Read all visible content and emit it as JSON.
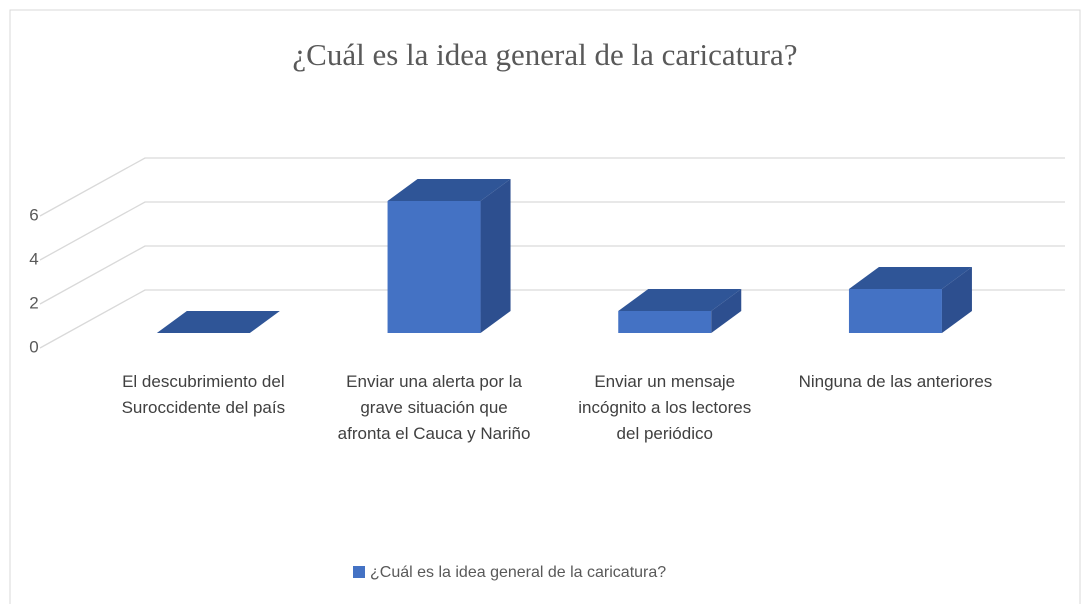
{
  "chart_data": {
    "type": "bar3d",
    "title": "¿Cuál es la idea general de la caricatura?",
    "categories": [
      "El descubrimiento del Suroccidente del país",
      "Enviar una alerta por la grave situación que afronta el Cauca y Nariño",
      "Enviar un mensaje incógnito a los lectores del periódico",
      "Ninguna de las anteriores"
    ],
    "series": [
      {
        "name": "¿Cuál es la idea general de la caricatura?",
        "color": "#4472c4",
        "values": [
          0,
          6,
          1,
          2
        ]
      }
    ],
    "ylim": [
      0,
      6
    ],
    "yticks": [
      0,
      2,
      4,
      6
    ],
    "grid": true,
    "legend": "bottom"
  }
}
